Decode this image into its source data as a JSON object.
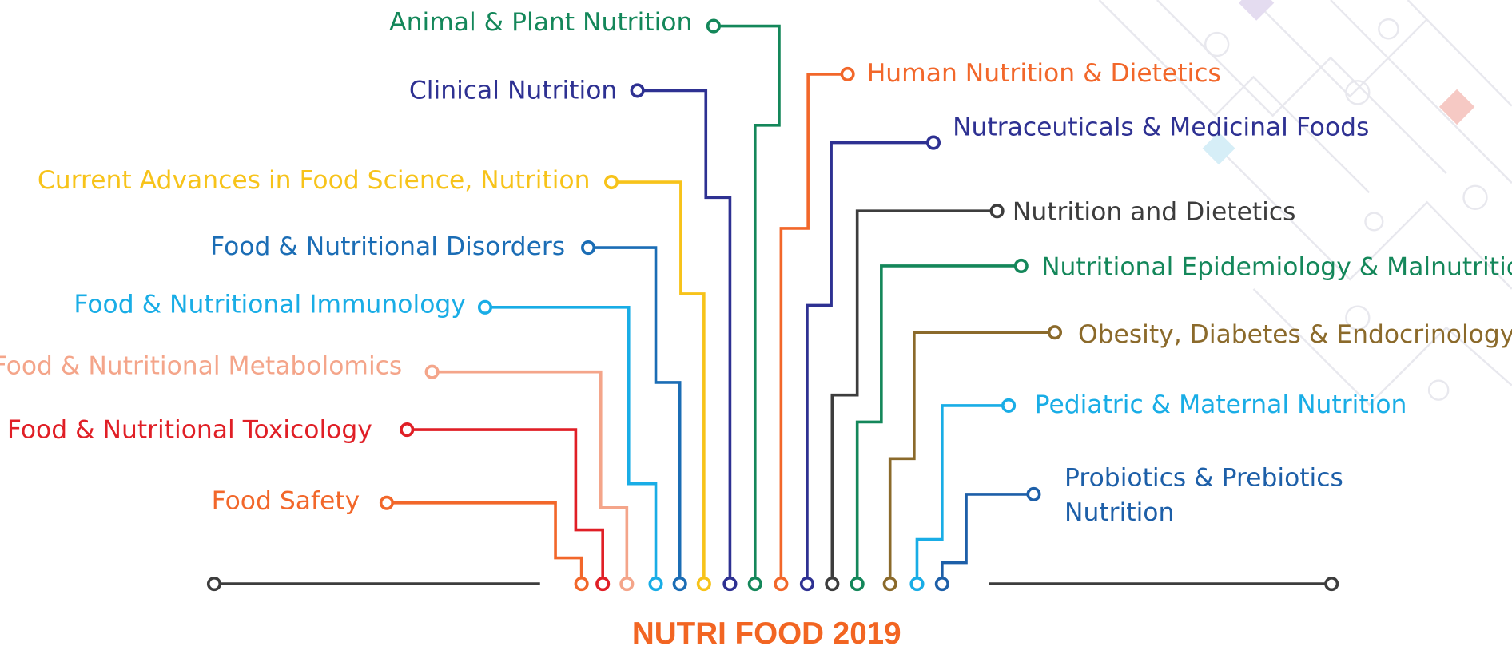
{
  "title": "NUTRI FOOD 2019",
  "topics": [
    {
      "label": [
        "Animal & Plant Nutrition"
      ],
      "color": "#14875a"
    },
    {
      "label": [
        "Clinical Nutrition"
      ],
      "color": "#2e3192"
    },
    {
      "label": [
        "Current Advances in Food Science, Nutrition"
      ],
      "color": "#f7c31a"
    },
    {
      "label": [
        "Food & Nutritional Disorders"
      ],
      "color": "#1b6db5"
    },
    {
      "label": [
        "Food & Nutritional Immunology"
      ],
      "color": "#19ade6"
    },
    {
      "label": [
        "Food & Nutritional Metabolomics"
      ],
      "color": "#f4a58a"
    },
    {
      "label": [
        "Food & Nutritional Toxicology"
      ],
      "color": "#e01f26"
    },
    {
      "label": [
        "Food Safety"
      ],
      "color": "#f2672a"
    },
    {
      "label": [
        "Human Nutrition & Dietetics"
      ],
      "color": "#f2672a"
    },
    {
      "label": [
        "Nutraceuticals & Medicinal Foods"
      ],
      "color": "#2e3192"
    },
    {
      "label": [
        "Nutrition and Dietetics"
      ],
      "color": "#3d3d3d"
    },
    {
      "label": [
        "Nutritional Epidemiology & Malnutrition"
      ],
      "color": "#14875a"
    },
    {
      "label": [
        "Obesity, Diabetes & Endocrinology"
      ],
      "color": "#8b6a2b"
    },
    {
      "label": [
        "Pediatric & Maternal Nutrition"
      ],
      "color": "#19ade6"
    },
    {
      "label": [
        "Probiotics & Prebiotics",
        "Nutrition"
      ],
      "color": "#1d5fa8"
    }
  ]
}
